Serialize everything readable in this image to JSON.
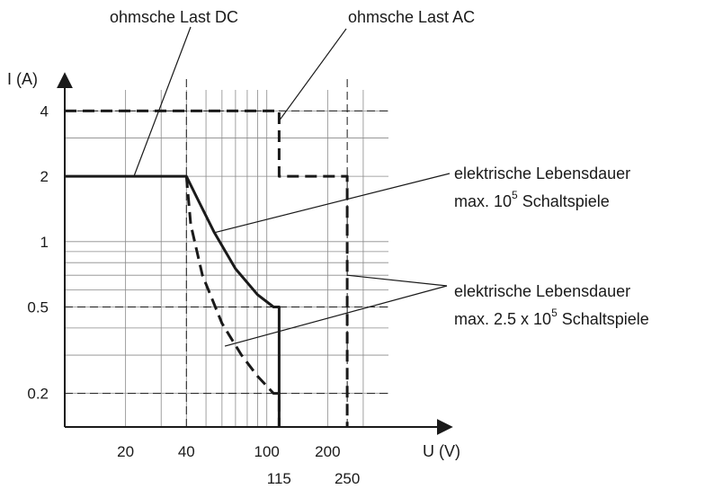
{
  "chart_data": {
    "type": "line",
    "xlabel": "U (V)",
    "ylabel": "I (A)",
    "x_scale": "log",
    "y_scale": "log",
    "xlim": [
      10,
      400
    ],
    "ylim": [
      0.14,
      5
    ],
    "x_ticks": [
      {
        "value": 20,
        "label": "20"
      },
      {
        "value": 40,
        "label": "40"
      },
      {
        "value": 100,
        "label": "100"
      },
      {
        "value": 200,
        "label": "200"
      }
    ],
    "x_ticks_secondary": [
      {
        "value": 115,
        "label": "115"
      },
      {
        "value": 250,
        "label": "250"
      }
    ],
    "y_ticks": [
      {
        "value": 4,
        "label": "4"
      },
      {
        "value": 2,
        "label": "2"
      },
      {
        "value": 1,
        "label": "1"
      },
      {
        "value": 0.5,
        "label": "0.5"
      },
      {
        "value": 0.2,
        "label": "0.2"
      }
    ],
    "grid": true,
    "series": [
      {
        "style": "solid",
        "points": [
          [
            10,
            2
          ],
          [
            40,
            2
          ],
          [
            45,
            1.6
          ],
          [
            55,
            1.1
          ],
          [
            70,
            0.75
          ],
          [
            90,
            0.57
          ],
          [
            108,
            0.5
          ],
          [
            115,
            0.5
          ],
          [
            115,
            0.14
          ]
        ]
      },
      {
        "style": "dashed",
        "points": [
          [
            40,
            2
          ],
          [
            42,
            1.2
          ],
          [
            48,
            0.7
          ],
          [
            60,
            0.42
          ],
          [
            75,
            0.3
          ],
          [
            90,
            0.24
          ],
          [
            108,
            0.2
          ],
          [
            115,
            0.2
          ],
          [
            115,
            0.14
          ]
        ]
      },
      {
        "style": "dashed",
        "points": [
          [
            10,
            4
          ],
          [
            115,
            4
          ],
          [
            115,
            2
          ],
          [
            250,
            2
          ],
          [
            250,
            0.14
          ]
        ]
      }
    ],
    "annotations": [
      {
        "id": "dc",
        "text": "ohmsche Last DC",
        "target": [
          22,
          2
        ]
      },
      {
        "id": "ac",
        "text": "ohmsche Last AC",
        "target": [
          115,
          3.6
        ]
      },
      {
        "id": "life1",
        "line1": "elektrische Lebensdauer",
        "line2_prefix": "max. 10",
        "line2_sup": "5",
        "line2_suffix": " Schaltspiele",
        "target": [
          55,
          1.1
        ]
      },
      {
        "id": "life2",
        "line1": "elektrische Lebensdauer",
        "line2_prefix": "max. 2.5 x 10",
        "line2_sup": "5",
        "line2_suffix": " Schaltspiele",
        "target": [
          62,
          0.33
        ],
        "target2": [
          250,
          0.7
        ]
      }
    ],
    "colors": {
      "ink": "#1a1a1a",
      "grid": "#8a8a8a"
    }
  }
}
